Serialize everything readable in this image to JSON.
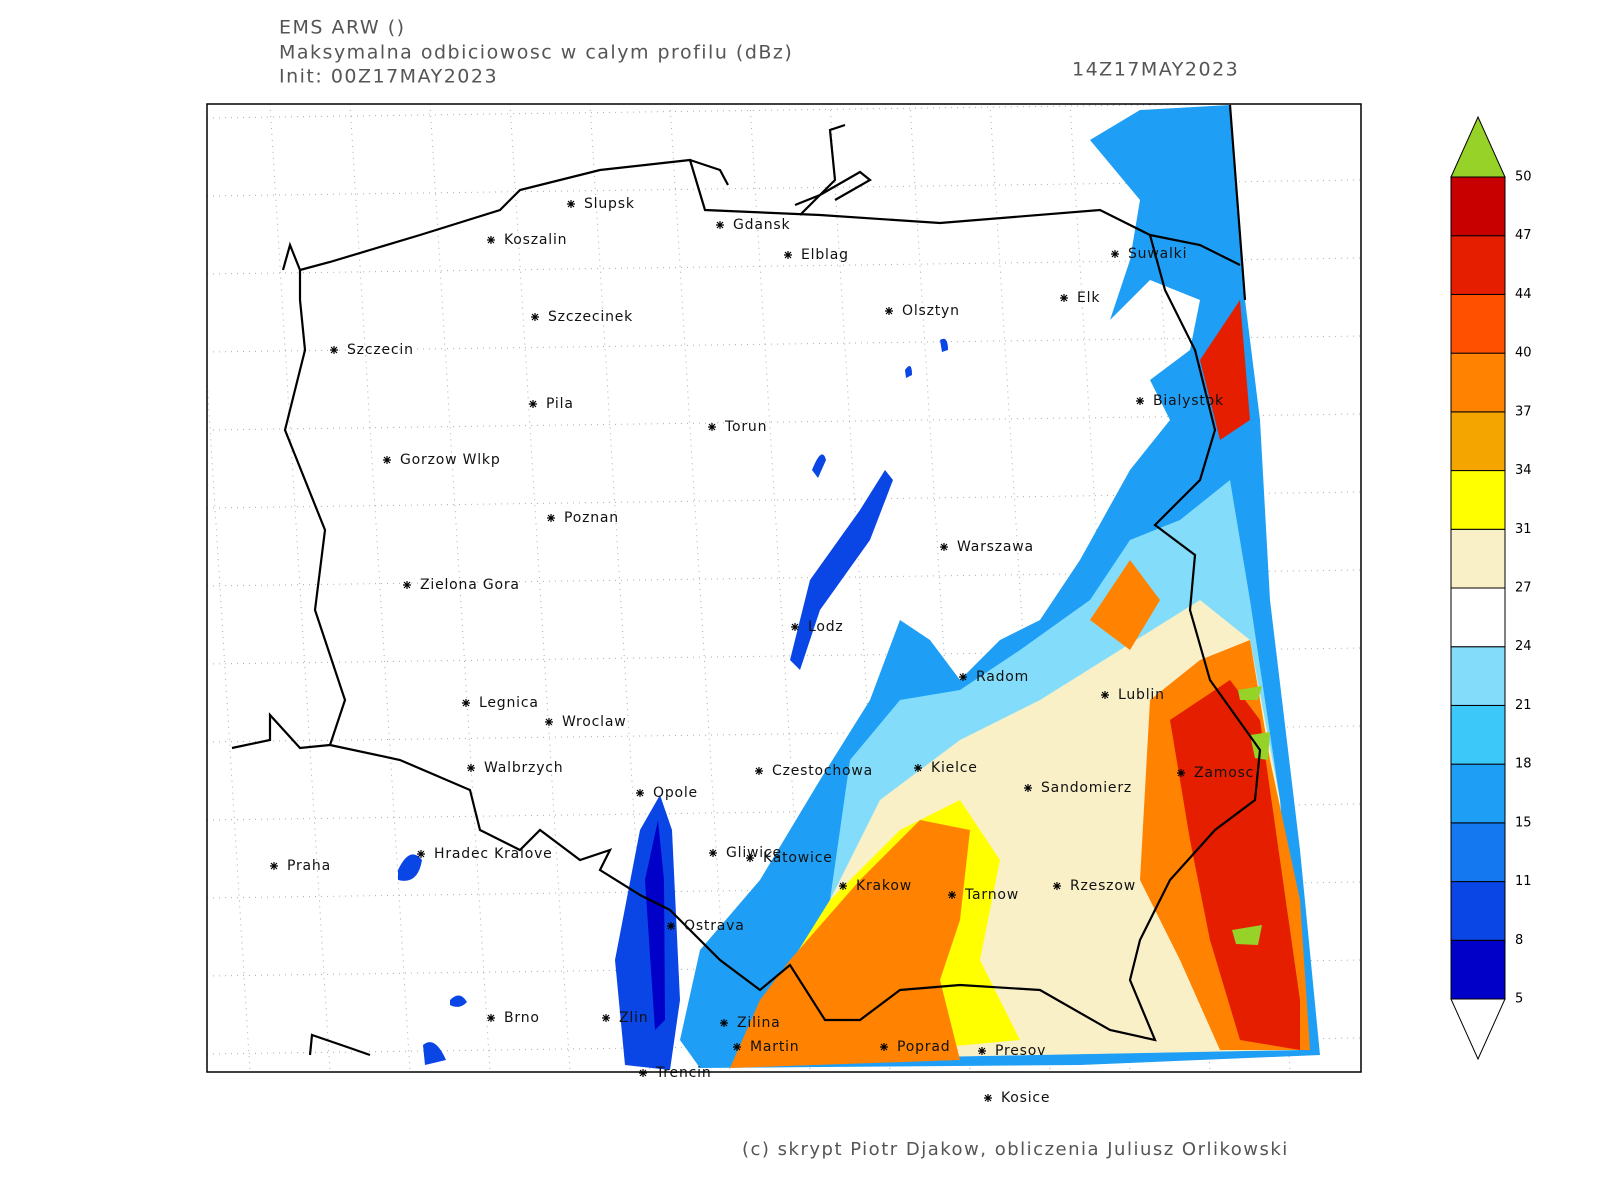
{
  "header": {
    "model": "EMS ARW ()",
    "title": "Maksymalna odbiciowosc w calym profilu (dBz)",
    "init": "Init: 00Z17MAY2023",
    "valid": "14Z17MAY2023"
  },
  "cities": [
    "Slupsk",
    "Koszalin",
    "Gdansk",
    "Elblag",
    "Suwalki",
    "Elk",
    "Olsztyn",
    "Szczecinek",
    "Szczecin",
    "Bialystok",
    "Pila",
    "Torun",
    "Gorzow Wlkp",
    "Poznan",
    "Warszawa",
    "Zielona Gora",
    "Lodz",
    "Radom",
    "Lublin",
    "Legnica",
    "Wroclaw",
    "Walbrzych",
    "Czestochowa",
    "Kielce",
    "Zamosc",
    "Sandomierz",
    "Opole",
    "Hradec Kralove",
    "Praha",
    "Gliwice",
    "Katowice",
    "Krakow",
    "Rzeszow",
    "Tarnow",
    "Ostrava",
    "Brno",
    "Zlin",
    "Zilina",
    "Martin",
    "Poprad",
    "Presov",
    "Trencin",
    "Kosice"
  ],
  "colorbar": {
    "levels": [
      5,
      8,
      11,
      15,
      18,
      21,
      24,
      27,
      31,
      34,
      37,
      40,
      44,
      47,
      50
    ],
    "colors": [
      "#0000c8",
      "#0a46e6",
      "#1478f0",
      "#1e9ff5",
      "#3cc8f8",
      "#82dcfa",
      "#ffffff",
      "#faf0c8",
      "#ffff00",
      "#f5a500",
      "#ff8200",
      "#ff5000",
      "#e61e00",
      "#c80000"
    ],
    "under_color": "#ffffff",
    "over_color": "#96d228"
  },
  "footer": "(c) skrypt Piotr Djakow, obliczenia Juliusz Orlikowski"
}
